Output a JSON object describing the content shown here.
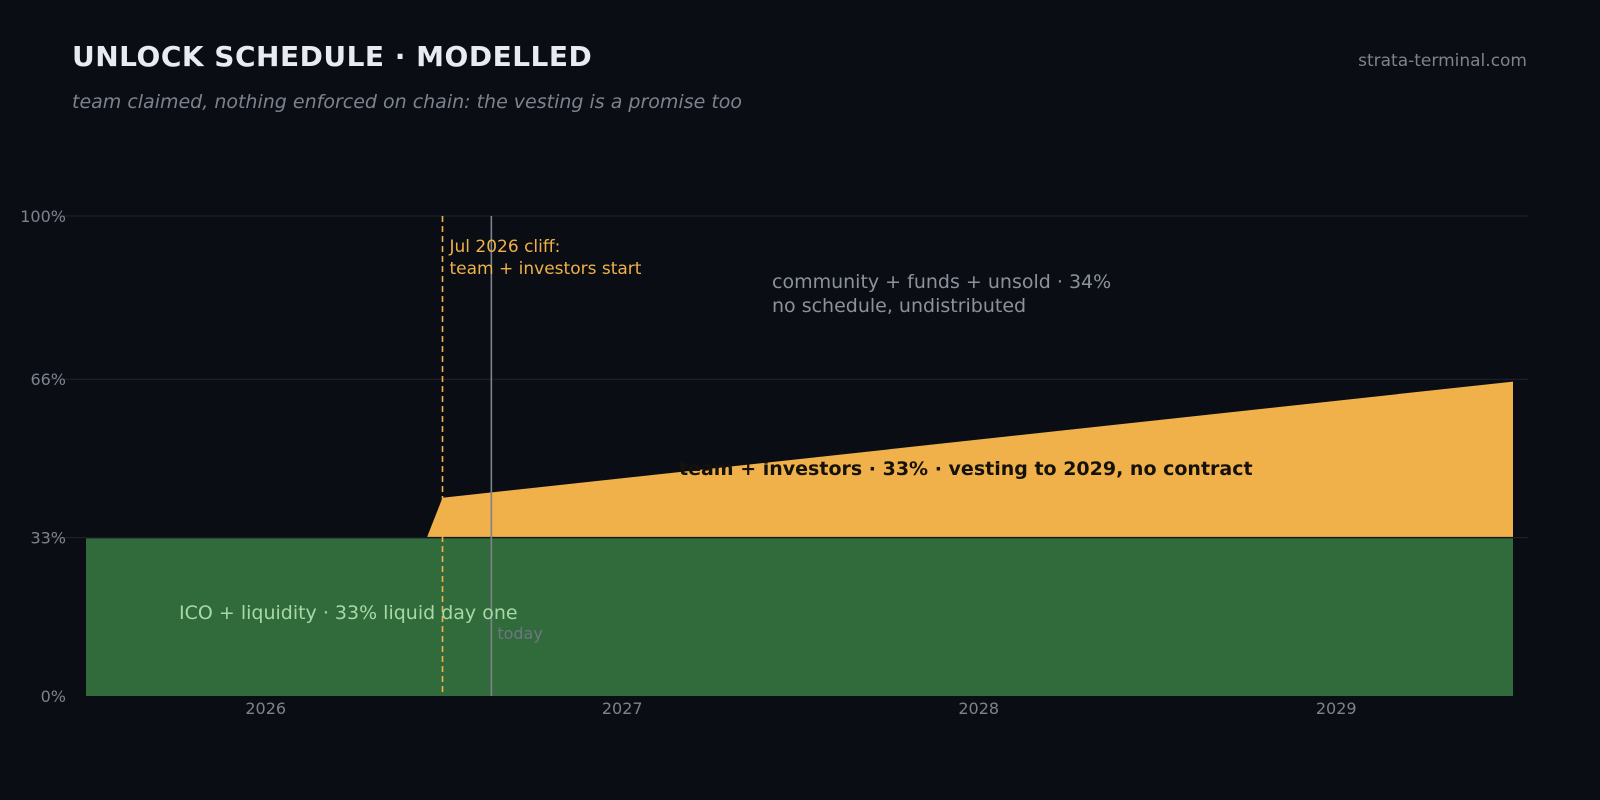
{
  "header": {
    "title": "UNLOCK SCHEDULE · MODELLED",
    "subtitle": "team claimed, nothing enforced on chain: the vesting is a promise too",
    "site": "strata-terminal.com"
  },
  "colors": {
    "background": "#0a0d14",
    "ico": "#316b3c",
    "team": "#f0b04a",
    "cliff": "#f0b04a",
    "today": "#7d838d",
    "grid": "#1f242d"
  },
  "chart_data": {
    "type": "area",
    "x_range": [
      "2025-07-01",
      "2029-07-01"
    ],
    "ylim": [
      0,
      100
    ],
    "y_ticks": [
      {
        "value": 0,
        "label": "0%"
      },
      {
        "value": 33,
        "label": "33%"
      },
      {
        "value": 66,
        "label": "66%"
      },
      {
        "value": 100,
        "label": "100%"
      }
    ],
    "x_ticks": [
      {
        "date": "2026-01-01",
        "label": "2026"
      },
      {
        "date": "2027-01-01",
        "label": "2027"
      },
      {
        "date": "2028-01-01",
        "label": "2028"
      },
      {
        "date": "2029-01-01",
        "label": "2029"
      }
    ],
    "grid": true,
    "series": [
      {
        "key": "ico",
        "points": [
          {
            "x": "2025-07-01",
            "y": 33
          },
          {
            "x": "2029-07-01",
            "y": 33
          }
        ]
      },
      {
        "key": "team",
        "points": [
          {
            "x": "2025-07-01",
            "y": 33
          },
          {
            "x": "2026-06-15",
            "y": 33
          },
          {
            "x": "2026-07-01",
            "y": 41.3
          },
          {
            "x": "2029-07-01",
            "y": 65.5
          }
        ]
      }
    ],
    "markers": {
      "cliff": {
        "x": "2026-07-01",
        "label_1": "Jul 2026 cliff:",
        "label_2": "team + investors start"
      },
      "today": {
        "x": "2026-08-20",
        "label": "today"
      }
    },
    "annotations": {
      "community_1": "community + funds + unsold · 34%",
      "community_2": "no schedule, undistributed",
      "team": "team + investors · 33% · vesting to 2029, no contract",
      "ico": "ICO + liquidity · 33% liquid day one"
    }
  }
}
